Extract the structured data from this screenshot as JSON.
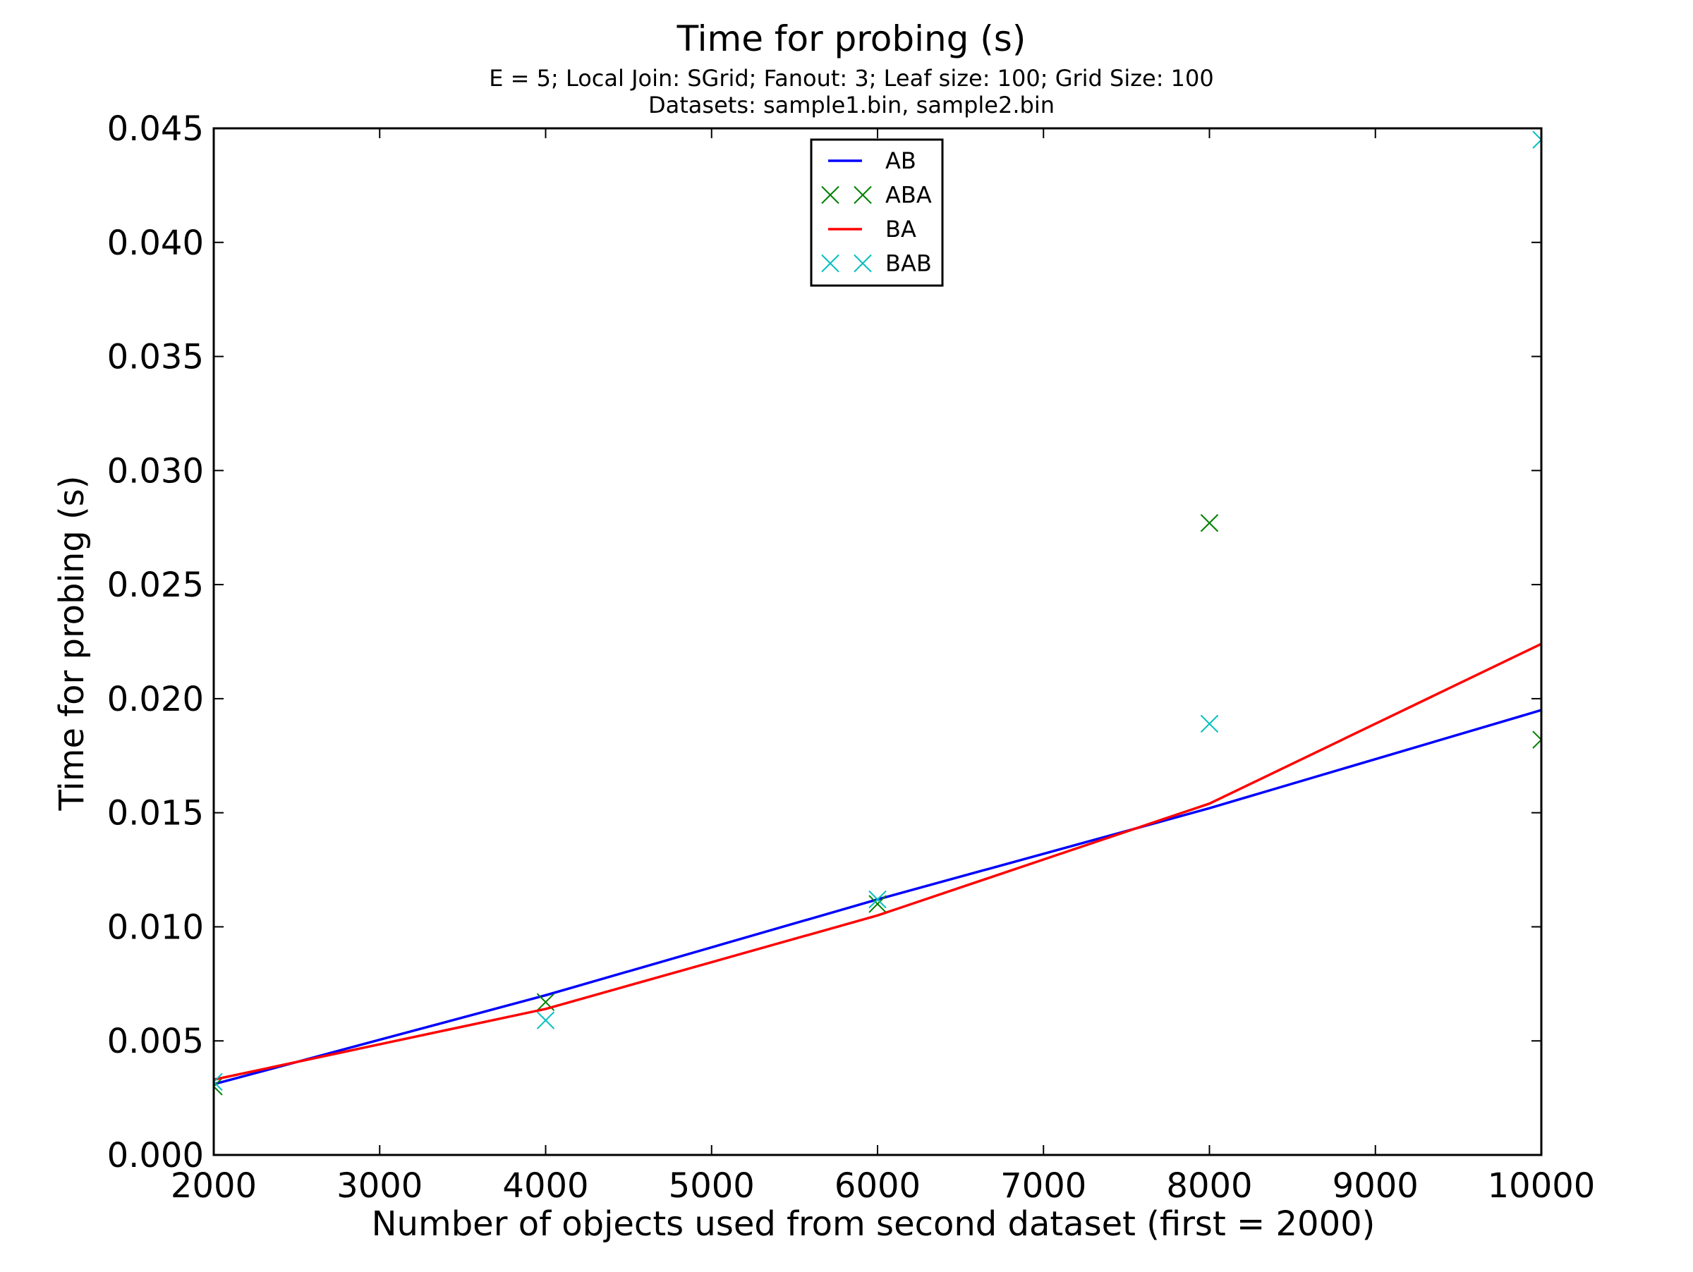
{
  "chart_data": {
    "type": "line",
    "title": "Time for probing (s)",
    "subtitle_lines": [
      "E = 5; Local Join: SGrid; Fanout: 3; Leaf size: 100; Grid Size: 100",
      "Datasets: sample1.bin, sample2.bin"
    ],
    "xlabel": "Number of objects used from second dataset (first = 2000)",
    "ylabel": "Time for probing (s)",
    "xlim": [
      2000,
      10000
    ],
    "ylim": [
      0,
      0.045
    ],
    "xticks": [
      2000,
      3000,
      4000,
      5000,
      6000,
      7000,
      8000,
      9000,
      10000
    ],
    "xtick_labels": [
      "2000",
      "3000",
      "4000",
      "5000",
      "6000",
      "7000",
      "8000",
      "9000",
      "10000"
    ],
    "yticks": [
      0,
      0.005,
      0.01,
      0.015,
      0.02,
      0.025,
      0.03,
      0.035,
      0.04,
      0.045
    ],
    "ytick_labels": [
      "0.000",
      "0.005",
      "0.010",
      "0.015",
      "0.020",
      "0.025",
      "0.030",
      "0.035",
      "0.040",
      "0.045"
    ],
    "grid": false,
    "legend_position": "upper center",
    "series": [
      {
        "name": "AB",
        "style": "line",
        "color": "#0000ff",
        "x": [
          2000,
          4000,
          6000,
          8000,
          10000
        ],
        "y": [
          0.0031,
          0.007,
          0.0112,
          0.0152,
          0.0195
        ]
      },
      {
        "name": "ABA",
        "style": "marker-x",
        "color": "#008000",
        "x": [
          2000,
          4000,
          6000,
          8000,
          10000
        ],
        "y": [
          0.003,
          0.0067,
          0.011,
          0.0277,
          0.0182
        ]
      },
      {
        "name": "BA",
        "style": "line",
        "color": "#ff0000",
        "x": [
          2000,
          4000,
          6000,
          8000,
          10000
        ],
        "y": [
          0.0033,
          0.0064,
          0.0105,
          0.0154,
          0.0224
        ]
      },
      {
        "name": "BAB",
        "style": "marker-x",
        "color": "#00bfbf",
        "x": [
          2000,
          4000,
          6000,
          8000,
          10000
        ],
        "y": [
          0.0032,
          0.0059,
          0.0112,
          0.0189,
          0.0445
        ]
      }
    ]
  }
}
